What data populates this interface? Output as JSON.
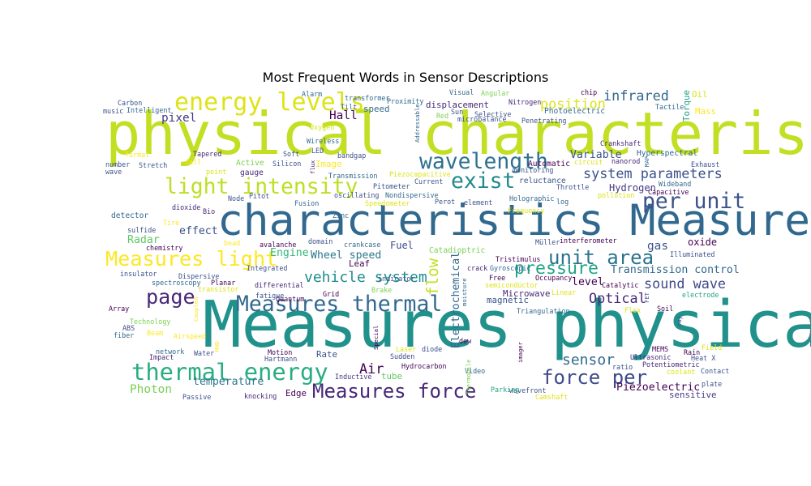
{
  "chart_data": {
    "type": "wordcloud",
    "title": "Most Frequent Words in Sensor Descriptions",
    "colormap": "viridis",
    "background": "#ffffff",
    "words": [
      {
        "text": "physical characteristics",
        "weight": 1.0,
        "color": "#c2df23"
      },
      {
        "text": "Measures physical",
        "weight": 0.9,
        "color": "#21918c"
      },
      {
        "text": "characteristics Measures",
        "weight": 0.72,
        "color": "#31688e"
      },
      {
        "text": "energy levels",
        "weight": 0.42,
        "color": "#dde318"
      },
      {
        "text": "light intensity",
        "weight": 0.38,
        "color": "#bddf26"
      },
      {
        "text": "wavelength",
        "weight": 0.4,
        "color": "#2c728e"
      },
      {
        "text": "exist",
        "weight": 0.4,
        "color": "#238a8d"
      },
      {
        "text": "per unit",
        "weight": 0.4,
        "color": "#3b528b"
      },
      {
        "text": "Measures light",
        "weight": 0.38,
        "color": "#fde725"
      },
      {
        "text": "unit area",
        "weight": 0.36,
        "color": "#2c728e"
      },
      {
        "text": "Measures thermal",
        "weight": 0.36,
        "color": "#31688e"
      },
      {
        "text": "page",
        "weight": 0.36,
        "color": "#482878"
      },
      {
        "text": "thermal energy",
        "weight": 0.4,
        "color": "#27ad81"
      },
      {
        "text": "force per",
        "weight": 0.34,
        "color": "#3e4989"
      },
      {
        "text": "Measures force",
        "weight": 0.34,
        "color": "#482878"
      },
      {
        "text": "pressure",
        "weight": 0.3,
        "color": "#20a486"
      },
      {
        "text": "position",
        "weight": 0.26,
        "color": "#dde318"
      },
      {
        "text": "infrared",
        "weight": 0.22,
        "color": "#31688e"
      },
      {
        "text": "system parameters",
        "weight": 0.24,
        "color": "#3b528b"
      },
      {
        "text": "vehicle system",
        "weight": 0.26,
        "color": "#228c8d"
      },
      {
        "text": "sound wave",
        "weight": 0.22,
        "color": "#3e4989"
      },
      {
        "text": "sensor",
        "weight": 0.24,
        "color": "#31688e"
      },
      {
        "text": "Air",
        "weight": 0.22,
        "color": "#440154"
      },
      {
        "text": "Optical",
        "weight": 0.2,
        "color": "#482878"
      },
      {
        "text": "flow",
        "weight": 0.22,
        "color": "#c2df23"
      },
      {
        "text": "Hall",
        "weight": 0.18,
        "color": "#440154"
      },
      {
        "text": "pixel",
        "weight": 0.18,
        "color": "#443983"
      },
      {
        "text": "effect",
        "weight": 0.18,
        "color": "#3b528b"
      },
      {
        "text": "Photon",
        "weight": 0.18,
        "color": "#7ad151"
      },
      {
        "text": "temperature",
        "weight": 0.16,
        "color": "#2a788e"
      },
      {
        "text": "Radar",
        "weight": 0.16,
        "color": "#5ec962"
      },
      {
        "text": "Engine",
        "weight": 0.16,
        "color": "#35b779"
      },
      {
        "text": "Fuel",
        "weight": 0.16,
        "color": "#3e4989"
      },
      {
        "text": "Wheel speed",
        "weight": 0.16,
        "color": "#2a788e"
      },
      {
        "text": "Variable",
        "weight": 0.16,
        "color": "#3b528b"
      },
      {
        "text": "Hydrogen",
        "weight": 0.16,
        "color": "#443983"
      },
      {
        "text": "gas",
        "weight": 0.18,
        "color": "#3b528b"
      },
      {
        "text": "level",
        "weight": 0.16,
        "color": "#440154"
      },
      {
        "text": "Electrochemical",
        "weight": 0.16,
        "color": "#31688e"
      },
      {
        "text": "Transmission control",
        "weight": 0.16,
        "color": "#31688e"
      },
      {
        "text": "Piezoelectric",
        "weight": 0.16,
        "color": "#440154"
      },
      {
        "text": "speed",
        "weight": 0.14,
        "color": "#31688e"
      },
      {
        "text": "Rate",
        "weight": 0.14,
        "color": "#3b528b"
      },
      {
        "text": "tube",
        "weight": 0.14,
        "color": "#5ec962"
      },
      {
        "text": "Edge",
        "weight": 0.14,
        "color": "#440154"
      },
      {
        "text": "sensitive",
        "weight": 0.14,
        "color": "#443983"
      },
      {
        "text": "oxide",
        "weight": 0.14,
        "color": "#440154"
      },
      {
        "text": "Leaf",
        "weight": 0.14,
        "color": "#440154"
      },
      {
        "text": "Catadioptric",
        "weight": 0.14,
        "color": "#7ad151"
      },
      {
        "text": "magnetic",
        "weight": 0.14,
        "color": "#3b528b"
      },
      {
        "text": "Microwave",
        "weight": 0.14,
        "color": "#482878"
      },
      {
        "text": "Oil",
        "weight": 0.14,
        "color": "#dde318"
      },
      {
        "text": "Mass",
        "weight": 0.14,
        "color": "#fde725"
      },
      {
        "text": "Torque",
        "weight": 0.14,
        "color": "#1fa188"
      },
      {
        "text": "Photoelectric",
        "weight": 0.13,
        "color": "#31688e"
      },
      {
        "text": "Hyperspectral",
        "weight": 0.13,
        "color": "#31688e"
      },
      {
        "text": "Automatic",
        "weight": 0.13,
        "color": "#440154"
      },
      {
        "text": "reluctance",
        "weight": 0.13,
        "color": "#3b528b"
      },
      {
        "text": "Image",
        "weight": 0.13,
        "color": "#fde725"
      },
      {
        "text": "Active",
        "weight": 0.13,
        "color": "#7ad151"
      },
      {
        "text": "gauge",
        "weight": 0.13,
        "color": "#482878"
      },
      {
        "text": "displacement",
        "weight": 0.13,
        "color": "#482878"
      },
      {
        "text": "detector",
        "weight": 0.13,
        "color": "#31688e"
      },
      {
        "text": "Ultrasonic",
        "weight": 0.12,
        "color": "#482878"
      },
      {
        "text": "Potentiometric",
        "weight": 0.12,
        "color": "#482878"
      },
      {
        "text": "Catalytic",
        "weight": 0.12,
        "color": "#440154"
      },
      {
        "text": "Throttle",
        "weight": 0.12,
        "color": "#3b528b"
      },
      {
        "text": "pollution",
        "weight": 0.12,
        "color": "#dde318"
      },
      {
        "text": "Capacitive",
        "weight": 0.12,
        "color": "#440154"
      },
      {
        "text": "Wideband",
        "weight": 0.12,
        "color": "#31688e"
      },
      {
        "text": "Exhaust",
        "weight": 0.12,
        "color": "#3b528b"
      },
      {
        "text": "Tactile",
        "weight": 0.12,
        "color": "#31688e"
      },
      {
        "text": "nanorod",
        "weight": 0.12,
        "color": "#482878"
      },
      {
        "text": "Illuminated",
        "weight": 0.12,
        "color": "#3b528b"
      },
      {
        "text": "Soil",
        "weight": 0.12,
        "color": "#440154"
      },
      {
        "text": "Triangulation",
        "weight": 0.12,
        "color": "#31688e"
      },
      {
        "text": "wavefront",
        "weight": 0.12,
        "color": "#3b528b"
      },
      {
        "text": "Parking",
        "weight": 0.12,
        "color": "#20a486"
      },
      {
        "text": "Inductive",
        "weight": 0.12,
        "color": "#443983"
      },
      {
        "text": "Hydrocarbon",
        "weight": 0.12,
        "color": "#440154"
      },
      {
        "text": "Sudden",
        "weight": 0.12,
        "color": "#3e4989"
      },
      {
        "text": "knocking",
        "weight": 0.12,
        "color": "#482878"
      },
      {
        "text": "Passive",
        "weight": 0.12,
        "color": "#3b528b"
      },
      {
        "text": "Impact",
        "weight": 0.12,
        "color": "#482878"
      },
      {
        "text": "network",
        "weight": 0.12,
        "color": "#31688e"
      },
      {
        "text": "Water",
        "weight": 0.12,
        "color": "#3b528b"
      },
      {
        "text": "Motion",
        "weight": 0.12,
        "color": "#440154"
      },
      {
        "text": "Hartmann",
        "weight": 0.12,
        "color": "#3b528b"
      },
      {
        "text": "fiber",
        "weight": 0.12,
        "color": "#31688e"
      },
      {
        "text": "ABS",
        "weight": 0.12,
        "color": "#3e4989"
      },
      {
        "text": "Technology",
        "weight": 0.12,
        "color": "#7ad151"
      },
      {
        "text": "Array",
        "weight": 0.12,
        "color": "#440154"
      },
      {
        "text": "insulator",
        "weight": 0.12,
        "color": "#3b528b"
      },
      {
        "text": "spectroscopy",
        "weight": 0.12,
        "color": "#31688e"
      },
      {
        "text": "transistor",
        "weight": 0.12,
        "color": "#dde318"
      },
      {
        "text": "Planar",
        "weight": 0.12,
        "color": "#440154"
      },
      {
        "text": "Dispersive",
        "weight": 0.12,
        "color": "#3b528b"
      },
      {
        "text": "Integrated",
        "weight": 0.12,
        "color": "#3b528b"
      },
      {
        "text": "fatigue",
        "weight": 0.12,
        "color": "#3b528b"
      },
      {
        "text": "differential",
        "weight": 0.12,
        "color": "#482878"
      },
      {
        "text": "Quantum",
        "weight": 0.12,
        "color": "#440154"
      },
      {
        "text": "Grid",
        "weight": 0.12,
        "color": "#440154"
      },
      {
        "text": "Brake",
        "weight": 0.12,
        "color": "#7ad151"
      },
      {
        "text": "indicator",
        "weight": 0.12,
        "color": "#3b528b"
      },
      {
        "text": "crack",
        "weight": 0.12,
        "color": "#482878"
      },
      {
        "text": "Gyroscopic",
        "weight": 0.12,
        "color": "#31688e"
      },
      {
        "text": "Tristimulus",
        "weight": 0.12,
        "color": "#440154"
      },
      {
        "text": "Müller",
        "weight": 0.12,
        "color": "#3b528b"
      },
      {
        "text": "interferometer",
        "weight": 0.12,
        "color": "#440154"
      },
      {
        "text": "Occupancy",
        "weight": 0.12,
        "color": "#440154"
      },
      {
        "text": "Free",
        "weight": 0.12,
        "color": "#440154"
      },
      {
        "text": "semiconductor",
        "weight": 0.12,
        "color": "#dde318"
      },
      {
        "text": "moisture",
        "weight": 0.12,
        "color": "#31688e"
      },
      {
        "text": "Linear",
        "weight": 0.12,
        "color": "#dde318"
      },
      {
        "text": "electrode",
        "weight": 0.12,
        "color": "#20a486"
      },
      {
        "text": "Flex",
        "weight": 0.12,
        "color": "#dde318"
      },
      {
        "text": "FET",
        "weight": 0.12,
        "color": "#3e4989"
      },
      {
        "text": "ray",
        "weight": 0.12,
        "color": "#3b528b"
      },
      {
        "text": "Field",
        "weight": 0.12,
        "color": "#dde318"
      },
      {
        "text": "Rain",
        "weight": 0.12,
        "color": "#440154"
      },
      {
        "text": "Heat X",
        "weight": 0.12,
        "color": "#3b528b"
      },
      {
        "text": "MEMS",
        "weight": 0.12,
        "color": "#440154"
      },
      {
        "text": "ratio",
        "weight": 0.12,
        "color": "#3b528b"
      },
      {
        "text": "coolant",
        "weight": 0.12,
        "color": "#dde318"
      },
      {
        "text": "Contact",
        "weight": 0.12,
        "color": "#3b528b"
      },
      {
        "text": "plate",
        "weight": 0.12,
        "color": "#3b528b"
      },
      {
        "text": "Camshaft",
        "weight": 0.12,
        "color": "#dde318"
      },
      {
        "text": "Video",
        "weight": 0.12,
        "color": "#31688e"
      },
      {
        "text": "Laser",
        "weight": 0.12,
        "color": "#dde318"
      },
      {
        "text": "diode",
        "weight": 0.12,
        "color": "#3b528b"
      },
      {
        "text": "imager",
        "weight": 0.12,
        "color": "#440154"
      },
      {
        "text": "dew",
        "weight": 0.12,
        "color": "#440154"
      },
      {
        "text": "Thermopile",
        "weight": 0.12,
        "color": "#7ad151"
      },
      {
        "text": "Special",
        "weight": 0.12,
        "color": "#440154"
      },
      {
        "text": "Airspeed",
        "weight": 0.12,
        "color": "#fde725"
      },
      {
        "text": "Beam",
        "weight": 0.12,
        "color": "#fde725"
      },
      {
        "text": "Coupled",
        "weight": 0.12,
        "color": "#fde725"
      },
      {
        "text": "MHD",
        "weight": 0.12,
        "color": "#fde725"
      },
      {
        "text": "Carbon",
        "weight": 0.12,
        "color": "#3b528b"
      },
      {
        "text": "Intelligent",
        "weight": 0.12,
        "color": "#31688e"
      },
      {
        "text": "music",
        "weight": 0.12,
        "color": "#3b528b"
      },
      {
        "text": "Alarm",
        "weight": 0.12,
        "color": "#31688e"
      },
      {
        "text": "transformer",
        "weight": 0.12,
        "color": "#31688e"
      },
      {
        "text": "Tilt",
        "weight": 0.12,
        "color": "#31688e"
      },
      {
        "text": "Proximity",
        "weight": 0.12,
        "color": "#31688e"
      },
      {
        "text": "Visual",
        "weight": 0.12,
        "color": "#31688e"
      },
      {
        "text": "Angular",
        "weight": 0.12,
        "color": "#7ad151"
      },
      {
        "text": "Nitrogen",
        "weight": 0.12,
        "color": "#482878"
      },
      {
        "text": "chip",
        "weight": 0.12,
        "color": "#440154"
      },
      {
        "text": "Crankshaft",
        "weight": 0.12,
        "color": "#482878"
      },
      {
        "text": "Penetrating",
        "weight": 0.12,
        "color": "#3b528b"
      },
      {
        "text": "Selective",
        "weight": 0.12,
        "color": "#3b528b"
      },
      {
        "text": "Sun",
        "weight": 0.12,
        "color": "#3b528b"
      },
      {
        "text": "microbalance",
        "weight": 0.12,
        "color": "#3b528b"
      },
      {
        "text": "Red",
        "weight": 0.12,
        "color": "#7ad151"
      },
      {
        "text": "Addressable",
        "weight": 0.12,
        "color": "#31688e"
      },
      {
        "text": "Oxygen",
        "weight": 0.12,
        "color": "#dde318"
      },
      {
        "text": "Wireless",
        "weight": 0.12,
        "color": "#31688e"
      },
      {
        "text": "LED",
        "weight": 0.12,
        "color": "#3b528b"
      },
      {
        "text": "bandgap",
        "weight": 0.12,
        "color": "#3b528b"
      },
      {
        "text": "Soft",
        "weight": 0.12,
        "color": "#3b528b"
      },
      {
        "text": "Silicon",
        "weight": 0.12,
        "color": "#3b528b"
      },
      {
        "text": "flux",
        "weight": 0.12,
        "color": "#482878"
      },
      {
        "text": "Tapered",
        "weight": 0.12,
        "color": "#482878"
      },
      {
        "text": "format",
        "weight": 0.12,
        "color": "#fde725"
      },
      {
        "text": "fall",
        "weight": 0.12,
        "color": "#fde725"
      },
      {
        "text": "number",
        "weight": 0.12,
        "color": "#3b528b"
      },
      {
        "text": "Stretch",
        "weight": 0.12,
        "color": "#3b528b"
      },
      {
        "text": "wave",
        "weight": 0.12,
        "color": "#3b528b"
      },
      {
        "text": "point",
        "weight": 0.12,
        "color": "#dde318"
      },
      {
        "text": "Transmission",
        "weight": 0.12,
        "color": "#31688e"
      },
      {
        "text": "Piezocapacitive",
        "weight": 0.12,
        "color": "#dde318"
      },
      {
        "text": "Current",
        "weight": 0.12,
        "color": "#3b528b"
      },
      {
        "text": "monitoring",
        "weight": 0.12,
        "color": "#3b528b"
      },
      {
        "text": "circuit",
        "weight": 0.12,
        "color": "#dde318"
      },
      {
        "text": "MAP",
        "weight": 0.12,
        "color": "#31688e"
      },
      {
        "text": "Pitometer",
        "weight": 0.12,
        "color": "#3b528b"
      },
      {
        "text": "Nondispersive",
        "weight": 0.12,
        "color": "#31688e"
      },
      {
        "text": "oscillating",
        "weight": 0.12,
        "color": "#3b528b"
      },
      {
        "text": "Speedometer",
        "weight": 0.12,
        "color": "#dde318"
      },
      {
        "text": "Holographic",
        "weight": 0.12,
        "color": "#31688e"
      },
      {
        "text": "log",
        "weight": 0.12,
        "color": "#31688e"
      },
      {
        "text": "element",
        "weight": 0.12,
        "color": "#3b528b"
      },
      {
        "text": "Frequency",
        "weight": 0.12,
        "color": "#dde318"
      },
      {
        "text": "Fusion",
        "weight": 0.12,
        "color": "#31688e"
      },
      {
        "text": "Node",
        "weight": 0.12,
        "color": "#3b528b"
      },
      {
        "text": "Pitot",
        "weight": 0.12,
        "color": "#3b528b"
      },
      {
        "text": "Zinc",
        "weight": 0.12,
        "color": "#31688e"
      },
      {
        "text": "Bio",
        "weight": 0.12,
        "color": "#482878"
      },
      {
        "text": "dioxide",
        "weight": 0.12,
        "color": "#482878"
      },
      {
        "text": "Tire",
        "weight": 0.12,
        "color": "#fde725"
      },
      {
        "text": "sulfide",
        "weight": 0.12,
        "color": "#3b528b"
      },
      {
        "text": "chemistry",
        "weight": 0.12,
        "color": "#440154"
      },
      {
        "text": "bead",
        "weight": 0.12,
        "color": "#fde725"
      },
      {
        "text": "avalanche",
        "weight": 0.12,
        "color": "#440154"
      },
      {
        "text": "domain",
        "weight": 0.12,
        "color": "#3b528b"
      },
      {
        "text": "crankcase",
        "weight": 0.12,
        "color": "#31688e"
      },
      {
        "text": "Perot",
        "weight": 0.12,
        "color": "#3b528b"
      }
    ]
  }
}
